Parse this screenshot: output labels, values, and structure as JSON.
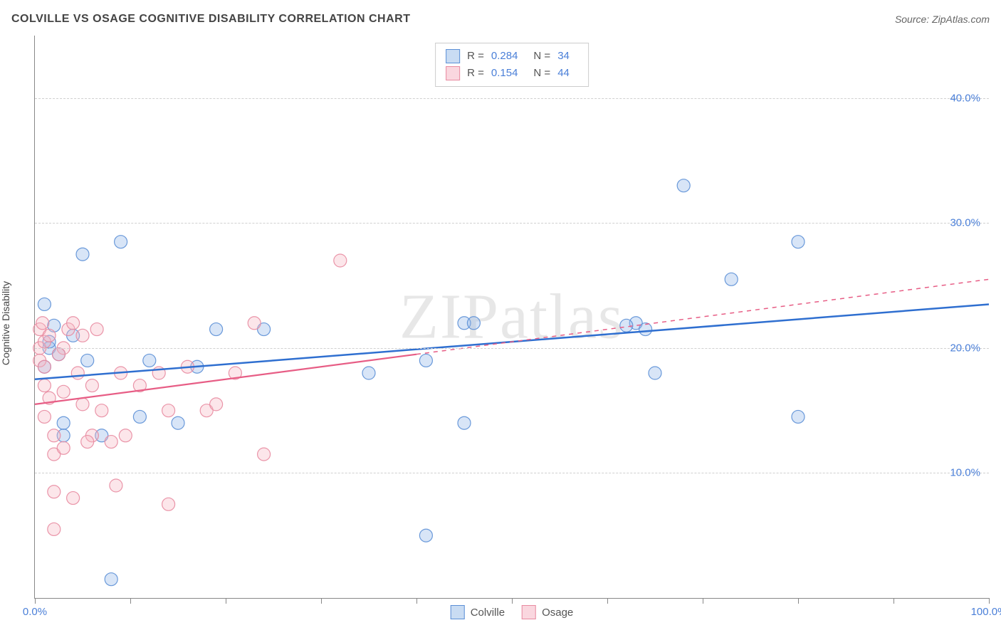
{
  "title": "COLVILLE VS OSAGE COGNITIVE DISABILITY CORRELATION CHART",
  "source": "Source: ZipAtlas.com",
  "ylabel": "Cognitive Disability",
  "watermark": "ZIPatlas",
  "chart": {
    "type": "scatter",
    "xlim": [
      0,
      100
    ],
    "ylim": [
      0,
      45
    ],
    "ytick_positions": [
      10,
      20,
      30,
      40
    ],
    "ytick_labels": [
      "10.0%",
      "20.0%",
      "30.0%",
      "40.0%"
    ],
    "xtick_positions": [
      0,
      10,
      20,
      30,
      40,
      50,
      60,
      70,
      80,
      90,
      100
    ],
    "xtick_label_left": "0.0%",
    "xtick_label_right": "100.0%",
    "grid_color": "#d0d0d0",
    "axis_color": "#888888",
    "background_color": "#ffffff",
    "tick_label_color": "#4a7fd8",
    "marker_radius": 9,
    "marker_fill_opacity": 0.35,
    "marker_stroke_opacity": 0.9,
    "marker_stroke_width": 1.2,
    "series": [
      {
        "name": "Colville",
        "color": "#8fb4e8",
        "stroke": "#5b8fd6",
        "R": "0.284",
        "N": "34",
        "trend": {
          "x1": 0,
          "y1": 17.5,
          "x2": 100,
          "y2": 23.5,
          "color": "#2f6fd0",
          "width": 2.5,
          "dash": "none"
        },
        "points": [
          [
            1,
            23.5
          ],
          [
            1,
            18.5
          ],
          [
            1.5,
            20
          ],
          [
            2,
            21.8
          ],
          [
            3,
            14
          ],
          [
            3,
            13
          ],
          [
            4,
            21
          ],
          [
            5,
            27.5
          ],
          [
            5.5,
            19
          ],
          [
            7,
            13
          ],
          [
            8,
            1.5
          ],
          [
            9,
            28.5
          ],
          [
            11,
            14.5
          ],
          [
            12,
            19
          ],
          [
            15,
            14
          ],
          [
            17,
            18.5
          ],
          [
            19,
            21.5
          ],
          [
            24,
            21.5
          ],
          [
            35,
            18
          ],
          [
            41,
            19
          ],
          [
            41,
            5
          ],
          [
            45,
            22
          ],
          [
            46,
            22
          ],
          [
            45,
            14
          ],
          [
            63,
            22
          ],
          [
            65,
            18
          ],
          [
            68,
            33
          ],
          [
            73,
            25.5
          ],
          [
            80,
            14.5
          ],
          [
            80,
            28.5
          ],
          [
            64,
            21.5
          ],
          [
            62,
            21.8
          ],
          [
            1.5,
            20.5
          ],
          [
            2.5,
            19.5
          ]
        ]
      },
      {
        "name": "Osage",
        "color": "#f5b6c4",
        "stroke": "#e88aa0",
        "R": "0.154",
        "N": "44",
        "trend": {
          "x1": 0,
          "y1": 15.5,
          "x2": 100,
          "y2": 25.5,
          "color": "#e75d85",
          "width": 2.2,
          "dash_solid_until": 40
        },
        "points": [
          [
            0.5,
            20
          ],
          [
            0.5,
            21.5
          ],
          [
            0.5,
            19
          ],
          [
            1,
            20.5
          ],
          [
            1,
            18.5
          ],
          [
            1,
            17
          ],
          [
            1.5,
            21
          ],
          [
            1.5,
            16
          ],
          [
            2,
            13
          ],
          [
            2,
            11.5
          ],
          [
            2,
            8.5
          ],
          [
            2,
            5.5
          ],
          [
            3,
            12
          ],
          [
            3,
            20
          ],
          [
            3.5,
            21.5
          ],
          [
            4,
            8
          ],
          [
            4,
            22
          ],
          [
            5,
            21
          ],
          [
            5,
            15.5
          ],
          [
            6,
            17
          ],
          [
            6,
            13
          ],
          [
            6.5,
            21.5
          ],
          [
            7,
            15
          ],
          [
            8,
            12.5
          ],
          [
            8.5,
            9
          ],
          [
            9,
            18
          ],
          [
            9.5,
            13
          ],
          [
            11,
            17
          ],
          [
            13,
            18
          ],
          [
            14,
            15
          ],
          [
            14,
            7.5
          ],
          [
            16,
            18.5
          ],
          [
            18,
            15
          ],
          [
            19,
            15.5
          ],
          [
            21,
            18
          ],
          [
            23,
            22
          ],
          [
            24,
            11.5
          ],
          [
            32,
            27
          ],
          [
            2.5,
            19.5
          ],
          [
            3,
            16.5
          ],
          [
            4.5,
            18
          ],
          [
            1,
            14.5
          ],
          [
            5.5,
            12.5
          ],
          [
            0.8,
            22
          ]
        ]
      }
    ]
  },
  "stats_box": {
    "rows": [
      {
        "swatch_fill": "#c9dcf3",
        "swatch_border": "#5b8fd6",
        "R_label": "R =",
        "R_value": "0.284",
        "N_label": "N =",
        "N_value": "34"
      },
      {
        "swatch_fill": "#fad7df",
        "swatch_border": "#e88aa0",
        "R_label": "R =",
        "R_value": "0.154",
        "N_label": "N =",
        "N_value": "44"
      }
    ]
  },
  "legend": {
    "items": [
      {
        "label": "Colville",
        "fill": "#c9dcf3",
        "border": "#5b8fd6"
      },
      {
        "label": "Osage",
        "fill": "#fad7df",
        "border": "#e88aa0"
      }
    ]
  }
}
